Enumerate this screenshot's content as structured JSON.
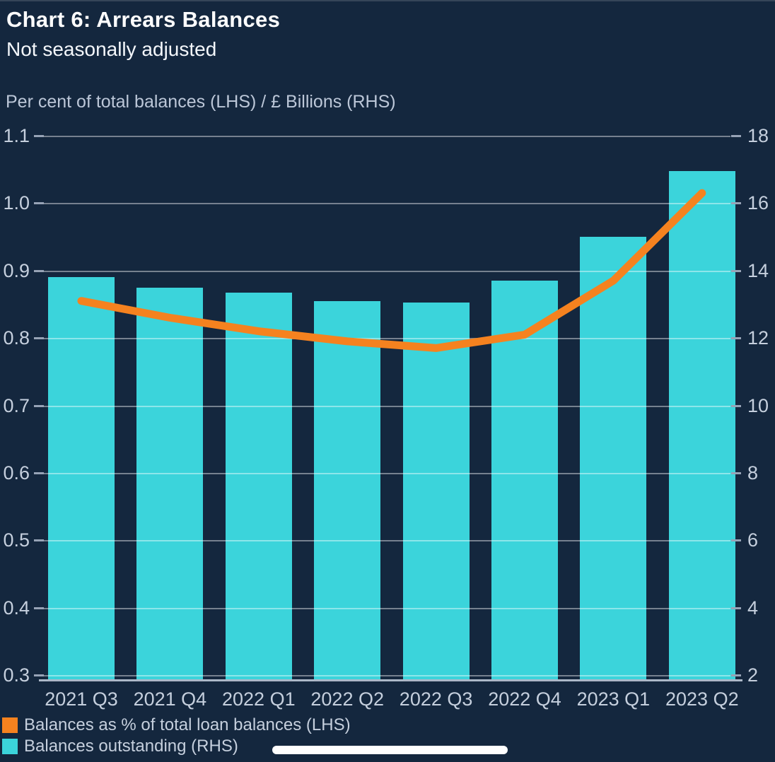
{
  "chart_data": {
    "type": "bar+line",
    "title": "Chart 6: Arrears Balances",
    "subtitle": "Not seasonally adjusted",
    "axis_unit_label": "Per cent of total balances (LHS) / £ Billions (RHS)",
    "categories": [
      "2021 Q3",
      "2021 Q4",
      "2022 Q1",
      "2022 Q2",
      "2022 Q3",
      "2022 Q4",
      "2023 Q1",
      "2023 Q2"
    ],
    "series": [
      {
        "name": "Balances as % of total loan balances (LHS)",
        "type": "line",
        "axis": "left",
        "color": "#F5821F",
        "values": [
          0.855,
          0.83,
          0.81,
          0.795,
          0.785,
          0.805,
          0.885,
          1.015
        ]
      },
      {
        "name": "Balances outstanding (RHS)",
        "type": "bar",
        "axis": "right",
        "color": "#3BD4DB",
        "values": [
          13.8,
          13.5,
          13.35,
          13.1,
          13.05,
          13.7,
          15.0,
          16.95
        ]
      }
    ],
    "left_axis": {
      "min": 0.3,
      "max": 1.1,
      "tick_labels": [
        "1.1",
        "1.0",
        "0.9",
        "0.8",
        "0.7",
        "0.6",
        "0.5",
        "0.4",
        "0.3"
      ]
    },
    "right_axis": {
      "min": 2,
      "max": 18,
      "tick_labels": [
        "18",
        "16",
        "14",
        "12",
        "10",
        "8",
        "6",
        "4",
        "2"
      ]
    },
    "grid": true,
    "legend_position": "bottom-left",
    "background_color": "#14273E",
    "bar_color": "#3BD4DB",
    "line_color": "#F5821F",
    "text_color": "#C5CFDD"
  },
  "ui": {
    "scroll_indicator": "horizontal-scrollbar-thumb"
  }
}
